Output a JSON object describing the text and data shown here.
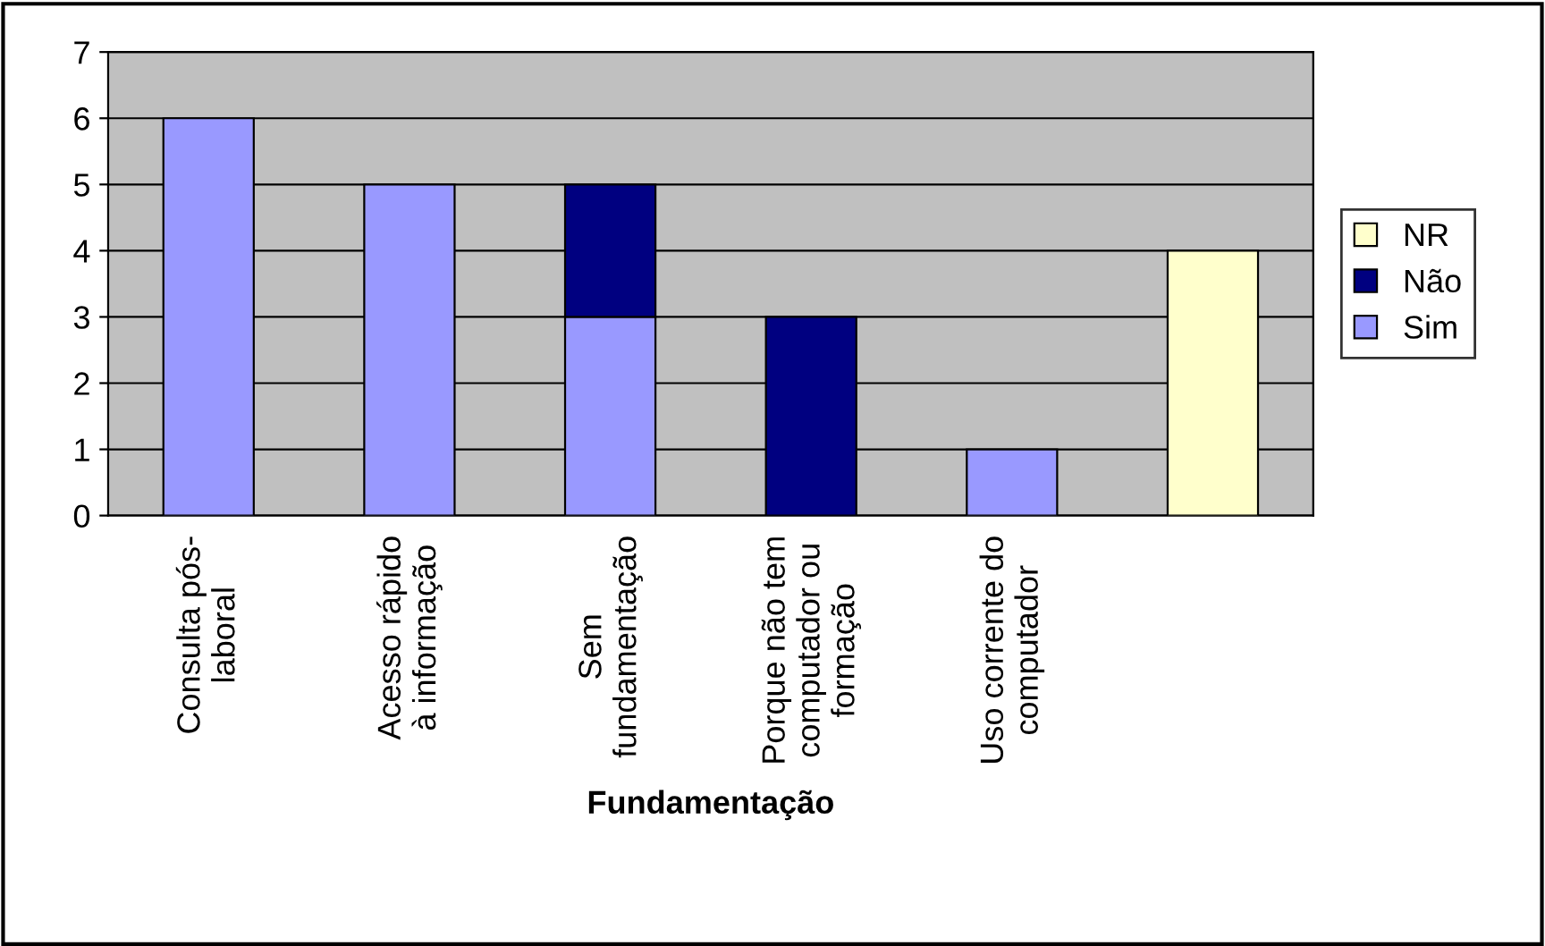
{
  "chart_data": {
    "type": "bar",
    "stacked": true,
    "xlabel": "Fundamentação",
    "categories": [
      "Consulta pós-\nlaboral",
      "Acesso rápido\nà informação",
      "Sem\nfundamentação",
      "Porque não tem\ncomputador ou\nformação",
      "Uso corrente do\ncomputador",
      null
    ],
    "series": [
      {
        "name": "Sim",
        "color": "#9999ff",
        "values": [
          6,
          5,
          3,
          null,
          1,
          null
        ]
      },
      {
        "name": "Não",
        "color": "#000080",
        "values": [
          null,
          null,
          2,
          3,
          null,
          null
        ]
      },
      {
        "name": "NR",
        "color": "#ffffcc",
        "values": [
          null,
          null,
          null,
          null,
          null,
          4
        ]
      }
    ],
    "ylim": [
      0,
      7
    ],
    "yticks": [
      0,
      1,
      2,
      3,
      4,
      5,
      6,
      7
    ],
    "grid": "y",
    "legend": "right"
  }
}
